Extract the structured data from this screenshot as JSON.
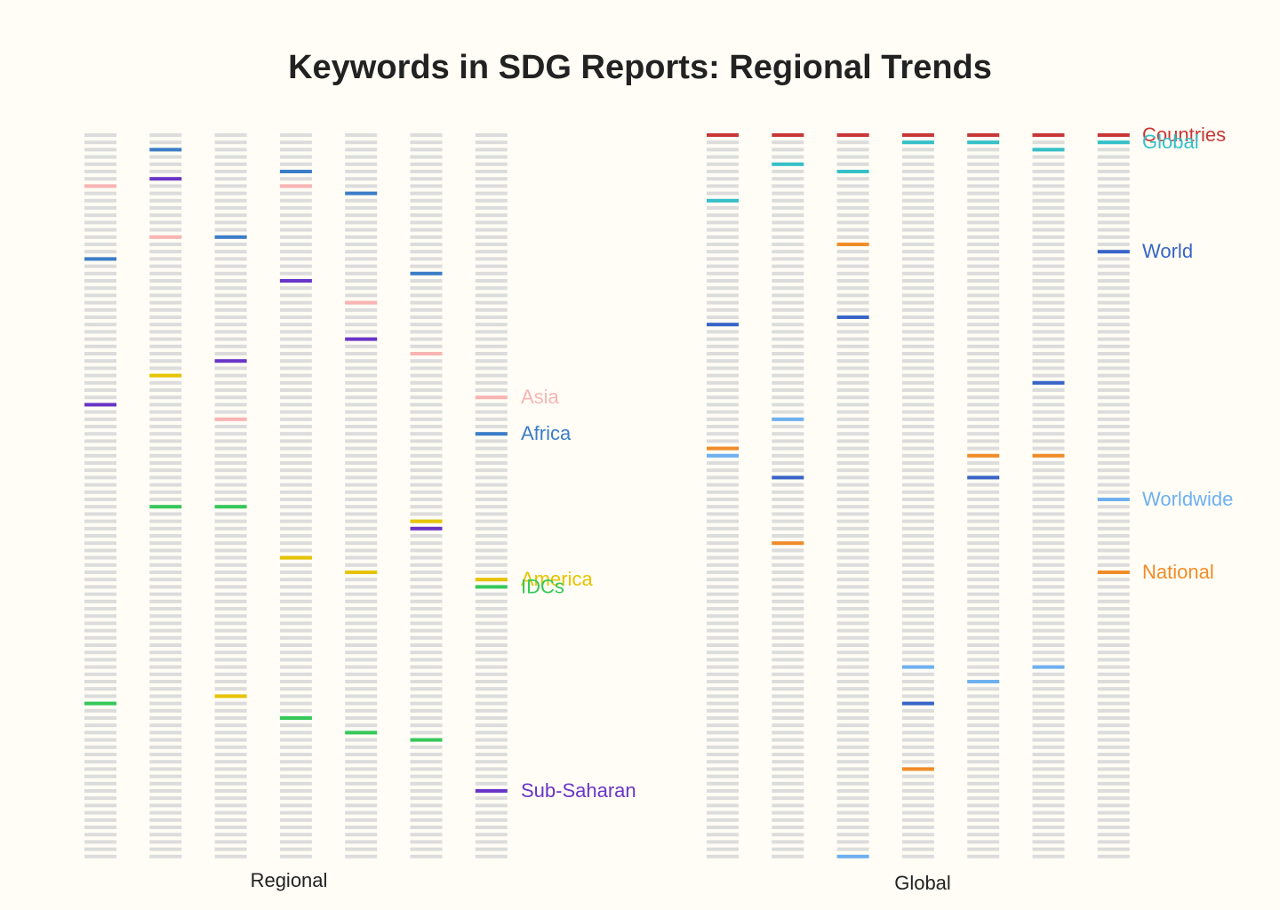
{
  "chart_data": {
    "type": "heatmap",
    "title": "Keywords in SDG Reports: Regional Trends",
    "rows_per_column": 100,
    "background_color": "#dcdcdc",
    "panels": [
      {
        "label": "Regional",
        "columns": 7,
        "keywords": [
          {
            "name": "Asia",
            "color": "#f9b4b4",
            "positions": [
              [
                7
              ],
              [
                14
              ],
              [
                39
              ],
              [
                7
              ],
              [
                23
              ],
              [
                30
              ],
              [
                36
              ]
            ]
          },
          {
            "name": "Africa",
            "color": "#3b7dc8",
            "positions": [
              [
                17
              ],
              [
                2
              ],
              [
                14
              ],
              [
                5
              ],
              [
                8
              ],
              [
                19
              ],
              [
                41
              ]
            ]
          },
          {
            "name": "America",
            "color": "#e6c300",
            "positions": [
              [],
              [
                33
              ],
              [
                77
              ],
              [
                58
              ],
              [
                60
              ],
              [
                53
              ],
              [
                61
              ]
            ]
          },
          {
            "name": "IDCs",
            "color": "#35c859",
            "positions": [
              [
                78
              ],
              [
                51
              ],
              [
                51
              ],
              [
                80
              ],
              [
                82
              ],
              [
                83
              ],
              [
                62
              ]
            ]
          },
          {
            "name": "Sub-Saharan",
            "color": "#6a35c8",
            "positions": [
              [
                37
              ],
              [
                6
              ],
              [
                31
              ],
              [
                20
              ],
              [
                28
              ],
              [
                54
              ],
              [
                90
              ]
            ]
          }
        ]
      },
      {
        "label": "Global",
        "columns": 7,
        "keywords": [
          {
            "name": "Countries",
            "color": "#c83737",
            "positions": [
              [
                0
              ],
              [
                0
              ],
              [
                0
              ],
              [
                0
              ],
              [
                0
              ],
              [
                0
              ],
              [
                0
              ]
            ]
          },
          {
            "name": "Global",
            "color": "#35c0c8",
            "positions": [
              [
                9
              ],
              [
                4
              ],
              [
                5
              ],
              [
                1
              ],
              [
                1
              ],
              [
                2
              ],
              [
                1
              ]
            ]
          },
          {
            "name": "World",
            "color": "#3864c8",
            "positions": [
              [
                26
              ],
              [
                47
              ],
              [
                25
              ],
              [
                78
              ],
              [
                47
              ],
              [
                34
              ],
              [
                16
              ]
            ]
          },
          {
            "name": "Worldwide",
            "color": "#6eb0f0",
            "positions": [
              [
                44
              ],
              [
                39
              ],
              [
                99
              ],
              [
                73
              ],
              [
                75
              ],
              [
                73
              ],
              [
                50
              ]
            ]
          },
          {
            "name": "National",
            "color": "#f08c28",
            "positions": [
              [
                43
              ],
              [
                56
              ],
              [
                15
              ],
              [
                87
              ],
              [
                44
              ],
              [
                44
              ],
              [
                60
              ]
            ]
          }
        ]
      }
    ]
  }
}
